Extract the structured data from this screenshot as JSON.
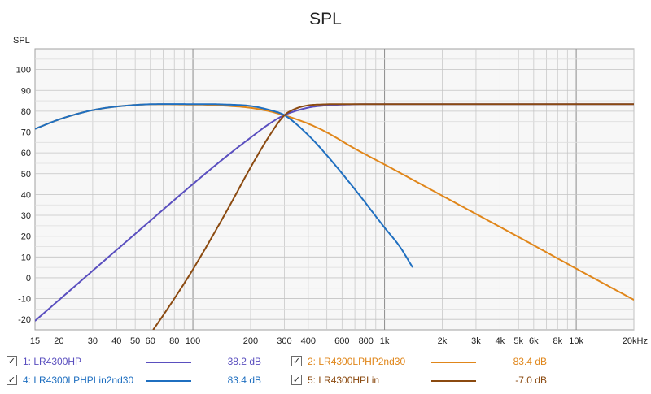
{
  "chart_data": {
    "type": "line",
    "title": "SPL",
    "ylabel": "SPL",
    "x_unit_label": "kHz",
    "x_scale": "log",
    "xlim": [
      15,
      20000
    ],
    "ylim": [
      -25,
      110
    ],
    "grid": true,
    "x_ticks": [
      15,
      20,
      30,
      40,
      50,
      60,
      80,
      100,
      200,
      300,
      400,
      600,
      800,
      1000,
      2000,
      3000,
      4000,
      5000,
      6000,
      8000,
      10000,
      20000
    ],
    "x_tick_labels": [
      "15",
      "20",
      "30",
      "40",
      "50",
      "60",
      "80",
      "100",
      "200",
      "300",
      "400",
      "600",
      "800",
      "1k",
      "2k",
      "3k",
      "4k",
      "5k",
      "6k",
      "8k",
      "10k",
      "20kHz"
    ],
    "y_ticks": [
      -20,
      -10,
      0,
      10,
      20,
      30,
      40,
      50,
      60,
      70,
      80,
      90,
      100
    ],
    "series": [
      {
        "name": "LR4300HP",
        "color": "#5a4fbf",
        "x": [
          15,
          20,
          30,
          50,
          100,
          150,
          200,
          250,
          300,
          400,
          500,
          700,
          1000,
          2000,
          5000,
          10000,
          20000
        ],
        "y": [
          -20.7,
          -10.7,
          3.4,
          21.1,
          45.0,
          58.4,
          67.3,
          73.9,
          78.1,
          81.7,
          82.8,
          83.3,
          83.4,
          83.4,
          83.4,
          83.4,
          83.4
        ]
      },
      {
        "name": "LR4300LPHP2nd30",
        "color": "#e0861a",
        "x": [
          15,
          20,
          30,
          50,
          100,
          150,
          200,
          250,
          300,
          400,
          500,
          700,
          1000,
          2000,
          5000,
          10000,
          20000
        ],
        "y": [
          71.5,
          76.0,
          80.5,
          83.0,
          83.2,
          82.6,
          81.6,
          80.0,
          78.0,
          74.0,
          69.8,
          62.0,
          54.4,
          39.4,
          19.6,
          4.4,
          -10.6
        ]
      },
      {
        "name": "LR4300LPHPLin2nd30",
        "color": "#1f6fc0",
        "x": [
          15,
          20,
          30,
          50,
          100,
          150,
          200,
          250,
          300,
          400,
          500,
          700,
          1000,
          1200,
          1400
        ],
        "y": [
          71.5,
          76.0,
          80.5,
          83.0,
          83.4,
          83.2,
          82.5,
          80.6,
          78.1,
          68.5,
          58.8,
          42.5,
          24.1,
          15.0,
          5.0
        ]
      },
      {
        "name": "LR4300HPLin",
        "color": "#8b4a10",
        "x": [
          62,
          70,
          80,
          100,
          150,
          200,
          250,
          300,
          350,
          400,
          500,
          700,
          1000,
          2000,
          5000,
          10000,
          20000
        ],
        "y": [
          -25.0,
          -18.0,
          -10.0,
          4.0,
          32.0,
          53.0,
          68.0,
          78.0,
          81.5,
          82.8,
          83.3,
          83.4,
          83.4,
          83.4,
          83.4,
          83.4,
          83.4
        ]
      }
    ]
  },
  "legend": [
    {
      "index": "1:",
      "name": "LR4300HP",
      "color": "#5a4fbf",
      "value": "38.2 dB",
      "checked": "✓"
    },
    {
      "index": "2:",
      "name": "LR4300LPHP2nd30",
      "color": "#e0861a",
      "value": "83.4 dB",
      "checked": "✓"
    },
    {
      "index": "4:",
      "name": "LR4300LPHPLin2nd30",
      "color": "#1f6fc0",
      "value": "83.4 dB",
      "checked": "✓"
    },
    {
      "index": "5:",
      "name": "LR4300HPLin",
      "color": "#8b4a10",
      "value": "-7.0 dB",
      "checked": "✓"
    }
  ]
}
